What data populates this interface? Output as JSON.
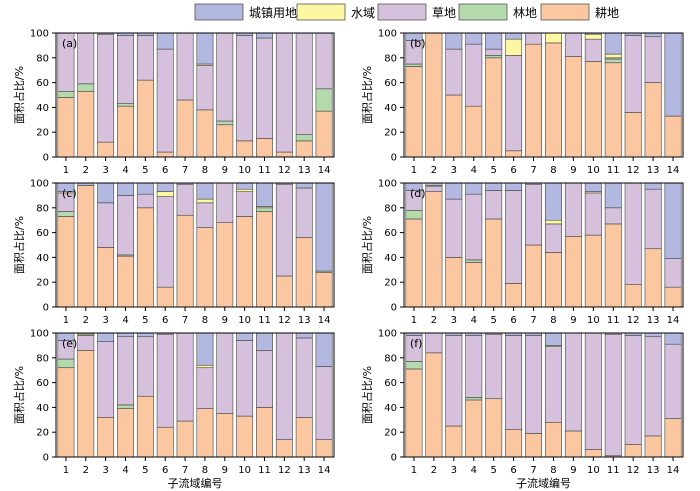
{
  "legend": [
    {
      "key": "urban",
      "label": "城镇用地",
      "color": "#b3b8e0"
    },
    {
      "key": "water",
      "label": "水域",
      "color": "#fbf7a3"
    },
    {
      "key": "grass",
      "label": "草地",
      "color": "#d6c1dd"
    },
    {
      "key": "forest",
      "label": "林地",
      "color": "#b4d9ad"
    },
    {
      "key": "farm",
      "label": "耕地",
      "color": "#fbc7a0"
    }
  ],
  "chart_data": [
    {
      "type": "bar",
      "panel_label": "(a)",
      "stacked": true,
      "categories": [
        "1",
        "2",
        "3",
        "4",
        "5",
        "6",
        "7",
        "8",
        "9",
        "10",
        "11",
        "12",
        "13",
        "14"
      ],
      "ylabel": "面积占比/%",
      "xlabel": "",
      "ylim": [
        0,
        100
      ],
      "yticks": [
        0,
        20,
        40,
        60,
        80,
        100
      ],
      "series": [
        {
          "key": "farm",
          "name": "耕地",
          "values": [
            48,
            53,
            12,
            41,
            62,
            4,
            46,
            38,
            26,
            13,
            15,
            4,
            13,
            37
          ]
        },
        {
          "key": "forest",
          "name": "林地",
          "values": [
            5,
            6,
            0,
            2,
            0,
            0,
            0,
            0,
            3,
            0,
            0,
            0,
            5,
            18
          ]
        },
        {
          "key": "grass",
          "name": "草地",
          "values": [
            47,
            41,
            87,
            55,
            36,
            83,
            54,
            36,
            71,
            85,
            81,
            96,
            82,
            45
          ]
        },
        {
          "key": "water",
          "name": "水域",
          "values": [
            0,
            0,
            0,
            0,
            0,
            0,
            0,
            1,
            0,
            0,
            0,
            0,
            0,
            0
          ]
        },
        {
          "key": "urban",
          "name": "城镇用地",
          "values": [
            0,
            0,
            1,
            2,
            2,
            13,
            0,
            25,
            0,
            2,
            4,
            0,
            0,
            0
          ]
        }
      ]
    },
    {
      "type": "bar",
      "panel_label": "(b)",
      "stacked": true,
      "categories": [
        "1",
        "2",
        "3",
        "4",
        "5",
        "6",
        "7",
        "8",
        "9",
        "10",
        "11",
        "12",
        "13",
        "14"
      ],
      "ylabel": "面积占比/%",
      "xlabel": "",
      "ylim": [
        0,
        100
      ],
      "yticks": [
        0,
        20,
        40,
        60,
        80,
        100
      ],
      "series": [
        {
          "key": "farm",
          "name": "耕地",
          "values": [
            73,
            100,
            50,
            41,
            80,
            5,
            91,
            92,
            81,
            77,
            76,
            36,
            60,
            33
          ]
        },
        {
          "key": "forest",
          "name": "林地",
          "values": [
            2,
            0,
            0,
            0,
            2,
            0,
            0,
            0,
            0,
            0,
            3,
            0,
            0,
            0
          ]
        },
        {
          "key": "grass",
          "name": "草地",
          "values": [
            19,
            0,
            37,
            50,
            5,
            77,
            9,
            0,
            19,
            18,
            1,
            62,
            37,
            0
          ]
        },
        {
          "key": "water",
          "name": "水域",
          "values": [
            0,
            0,
            0,
            0,
            0,
            13,
            0,
            8,
            0,
            4,
            3,
            0,
            0,
            0
          ]
        },
        {
          "key": "urban",
          "name": "城镇用地",
          "values": [
            6,
            0,
            13,
            9,
            13,
            5,
            0,
            0,
            0,
            1,
            17,
            2,
            3,
            67
          ]
        }
      ]
    },
    {
      "type": "bar",
      "panel_label": "(c)",
      "stacked": true,
      "categories": [
        "1",
        "2",
        "3",
        "4",
        "5",
        "6",
        "7",
        "8",
        "9",
        "10",
        "11",
        "12",
        "13",
        "14"
      ],
      "ylabel": "面积占比/%",
      "xlabel": "",
      "ylim": [
        0,
        100
      ],
      "yticks": [
        0,
        20,
        40,
        60,
        80,
        100
      ],
      "series": [
        {
          "key": "farm",
          "name": "耕地",
          "values": [
            73,
            98,
            48,
            41,
            80,
            16,
            74,
            64,
            68,
            73,
            77,
            25,
            56,
            28
          ]
        },
        {
          "key": "forest",
          "name": "林地",
          "values": [
            4,
            0,
            0,
            1,
            0,
            0,
            0,
            0,
            0,
            0,
            3,
            0,
            0,
            1
          ]
        },
        {
          "key": "grass",
          "name": "草地",
          "values": [
            15,
            0,
            36,
            48,
            11,
            73,
            25,
            20,
            32,
            20,
            0,
            74,
            40,
            0
          ]
        },
        {
          "key": "water",
          "name": "水域",
          "values": [
            1,
            0,
            0,
            0,
            0,
            4,
            0,
            3,
            0,
            2,
            1,
            0,
            0,
            0
          ]
        },
        {
          "key": "urban",
          "name": "城镇用地",
          "values": [
            7,
            2,
            16,
            10,
            9,
            7,
            1,
            13,
            0,
            5,
            19,
            1,
            4,
            71
          ]
        }
      ]
    },
    {
      "type": "bar",
      "panel_label": "(d)",
      "stacked": true,
      "categories": [
        "1",
        "2",
        "3",
        "4",
        "5",
        "6",
        "7",
        "8",
        "9",
        "10",
        "11",
        "12",
        "13",
        "14"
      ],
      "ylabel": "面积占比/%",
      "xlabel": "",
      "ylim": [
        0,
        100
      ],
      "yticks": [
        0,
        20,
        40,
        60,
        80,
        100
      ],
      "series": [
        {
          "key": "farm",
          "name": "耕地",
          "values": [
            71,
            93,
            40,
            36,
            71,
            19,
            50,
            44,
            57,
            58,
            67,
            18,
            47,
            16
          ]
        },
        {
          "key": "forest",
          "name": "林地",
          "values": [
            7,
            0,
            0,
            2,
            0,
            0,
            0,
            0,
            0,
            0,
            0,
            0,
            0,
            0
          ]
        },
        {
          "key": "grass",
          "name": "草地",
          "values": [
            16,
            4,
            47,
            53,
            23,
            75,
            49,
            23,
            43,
            34,
            13,
            82,
            48,
            23
          ]
        },
        {
          "key": "water",
          "name": "水域",
          "values": [
            0,
            1,
            0,
            0,
            0,
            0,
            0,
            3,
            0,
            1,
            0,
            0,
            0,
            0
          ]
        },
        {
          "key": "urban",
          "name": "城镇用地",
          "values": [
            6,
            2,
            13,
            9,
            6,
            6,
            1,
            30,
            0,
            7,
            20,
            0,
            5,
            61
          ]
        }
      ]
    },
    {
      "type": "bar",
      "panel_label": "(e)",
      "stacked": true,
      "categories": [
        "1",
        "2",
        "3",
        "4",
        "5",
        "6",
        "7",
        "8",
        "9",
        "10",
        "11",
        "12",
        "13",
        "14"
      ],
      "ylabel": "面积占比/%",
      "xlabel": "子流域编号",
      "ylim": [
        0,
        100
      ],
      "yticks": [
        0,
        20,
        40,
        60,
        80,
        100
      ],
      "series": [
        {
          "key": "farm",
          "name": "耕地",
          "values": [
            72,
            86,
            32,
            39,
            49,
            24,
            29,
            39,
            35,
            33,
            40,
            14,
            32,
            14
          ]
        },
        {
          "key": "forest",
          "name": "林地",
          "values": [
            7,
            0,
            0,
            3,
            0,
            0,
            0,
            0,
            0,
            0,
            0,
            0,
            0,
            0
          ]
        },
        {
          "key": "grass",
          "name": "草地",
          "values": [
            15,
            12,
            61,
            55,
            48,
            75,
            71,
            33,
            65,
            61,
            46,
            86,
            64,
            59
          ]
        },
        {
          "key": "water",
          "name": "水域",
          "values": [
            0,
            1,
            0,
            0,
            0,
            0,
            0,
            2,
            0,
            0,
            0,
            0,
            0,
            0
          ]
        },
        {
          "key": "urban",
          "name": "城镇用地",
          "values": [
            6,
            1,
            7,
            3,
            3,
            1,
            0,
            26,
            0,
            6,
            14,
            0,
            4,
            27
          ]
        }
      ]
    },
    {
      "type": "bar",
      "panel_label": "(f)",
      "stacked": true,
      "categories": [
        "1",
        "2",
        "3",
        "4",
        "5",
        "6",
        "7",
        "8",
        "9",
        "10",
        "11",
        "12",
        "13",
        "14"
      ],
      "ylabel": "面积占比/%",
      "xlabel": "子流域编号",
      "ylim": [
        0,
        100
      ],
      "yticks": [
        0,
        20,
        40,
        60,
        80,
        100
      ],
      "series": [
        {
          "key": "farm",
          "name": "耕地",
          "values": [
            71,
            84,
            25,
            46,
            47,
            22,
            19,
            28,
            21,
            6,
            1,
            10,
            17,
            31
          ]
        },
        {
          "key": "forest",
          "name": "林地",
          "values": [
            6,
            0,
            0,
            2,
            0,
            0,
            0,
            0,
            0,
            0,
            0,
            0,
            0,
            0
          ]
        },
        {
          "key": "grass",
          "name": "草地",
          "values": [
            21,
            16,
            73,
            50,
            52,
            76,
            79,
            61,
            79,
            94,
            98,
            88,
            80,
            60
          ]
        },
        {
          "key": "water",
          "name": "水域",
          "values": [
            0,
            0,
            0,
            0,
            0,
            0,
            0,
            1,
            0,
            0,
            0,
            0,
            0,
            0
          ]
        },
        {
          "key": "urban",
          "name": "城镇用地",
          "values": [
            2,
            0,
            2,
            2,
            1,
            2,
            2,
            10,
            0,
            0,
            1,
            2,
            3,
            9
          ]
        }
      ]
    }
  ]
}
